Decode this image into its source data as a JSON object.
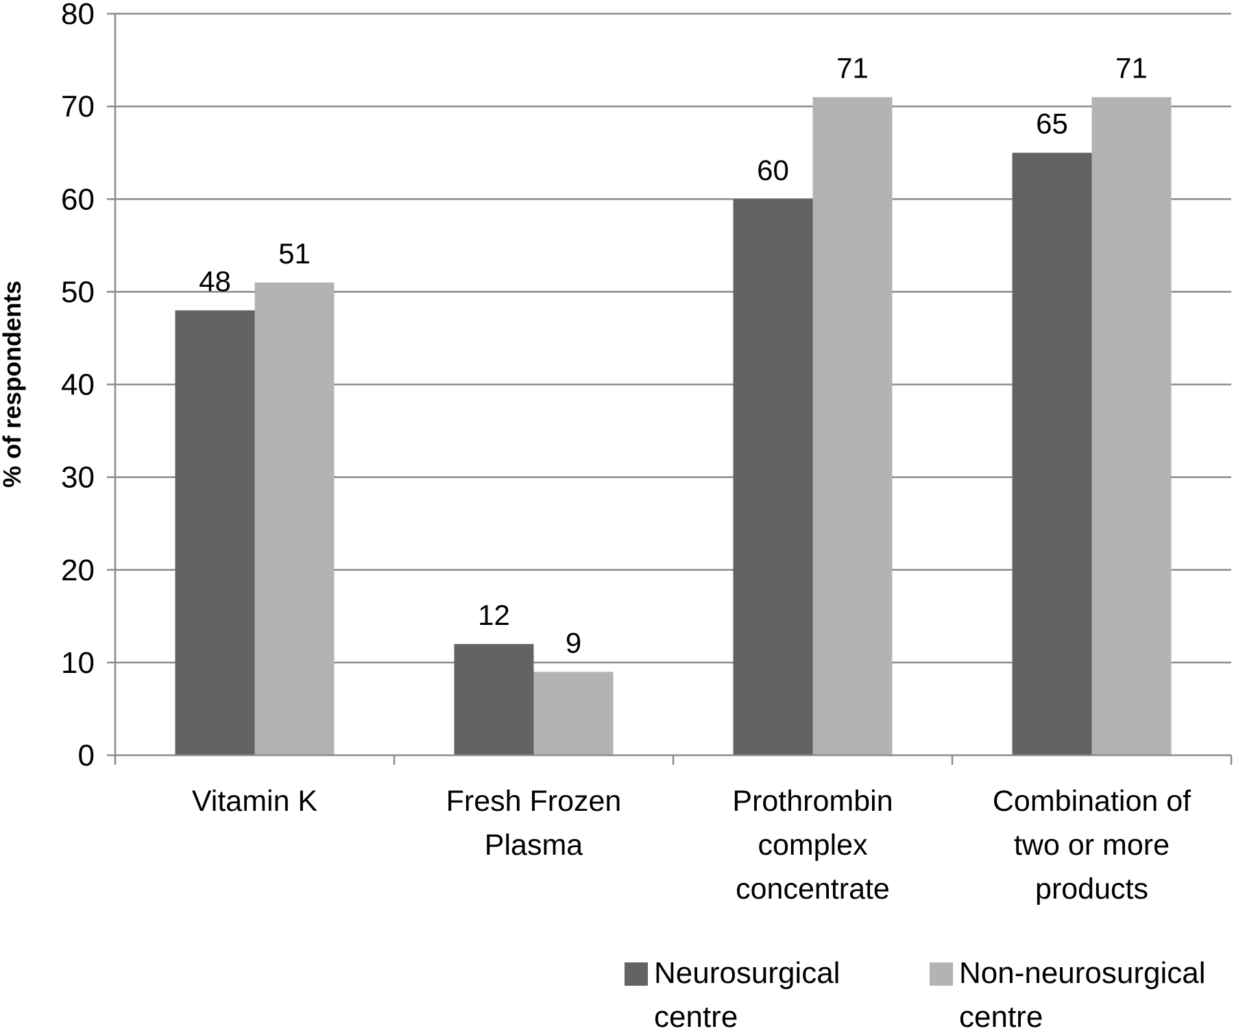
{
  "chart_data": {
    "type": "bar",
    "title": "",
    "xlabel": "",
    "ylabel": "% of respondents",
    "ylim": [
      0,
      80
    ],
    "yticks": [
      0,
      10,
      20,
      30,
      40,
      50,
      60,
      70,
      80
    ],
    "grid": true,
    "legend_position": "bottom-right",
    "categories": [
      [
        "Vitamin K"
      ],
      [
        "Fresh Frozen",
        "Plasma"
      ],
      [
        "Prothrombin",
        "complex",
        "concentrate"
      ],
      [
        "Combination of",
        "two or more",
        "products"
      ]
    ],
    "series": [
      {
        "name": [
          "Neurosurgical",
          "centre"
        ],
        "color": "#636363",
        "values": [
          48,
          12,
          60,
          65
        ]
      },
      {
        "name": [
          "Non-neurosurgical",
          "centre"
        ],
        "color": "#b3b3b3",
        "values": [
          51,
          9,
          71,
          71
        ]
      }
    ]
  }
}
